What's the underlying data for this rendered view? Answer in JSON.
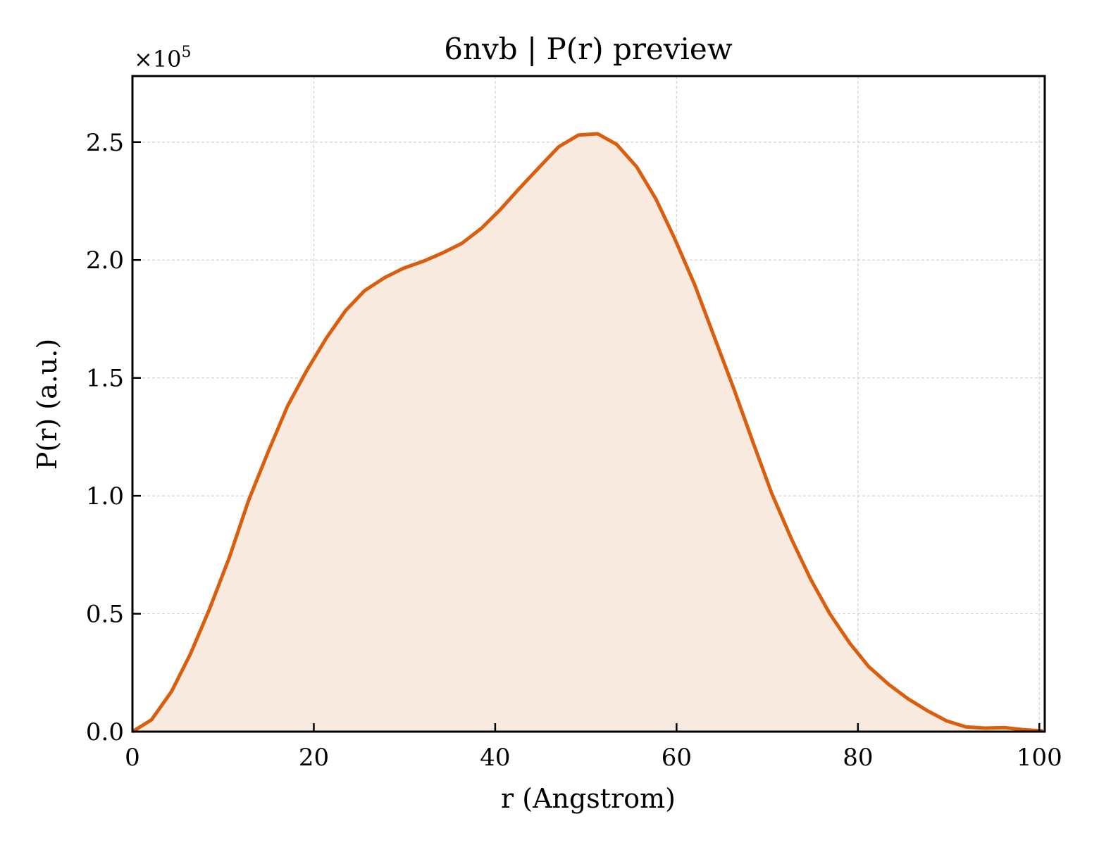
{
  "chart_data": {
    "type": "area",
    "title": "6nvb | P(r) preview",
    "xlabel": "r (Angstrom)",
    "ylabel": "P(r) (a.u.)",
    "y_multiplier_label": "×10",
    "y_multiplier_exponent": "5",
    "xlim": [
      0,
      100.6
    ],
    "ylim": [
      0,
      2.78
    ],
    "y_scale_note": "values in units of 1e5",
    "grid": true,
    "x_ticks": [
      0,
      20,
      40,
      60,
      80,
      100
    ],
    "x_tick_labels": [
      "0",
      "20",
      "40",
      "60",
      "80",
      "100"
    ],
    "y_ticks": [
      0,
      0.5,
      1.0,
      1.5,
      2.0,
      2.5
    ],
    "y_tick_labels": [
      "0.0",
      "0.5",
      "1.0",
      "1.5",
      "2.0",
      "2.5"
    ],
    "colors": {
      "line": "#d95f0e",
      "fill": "#f9eadf",
      "grid": "#d3d3d3"
    },
    "series": [
      {
        "x": [
          0,
          2.1,
          4.3,
          6.4,
          8.5,
          10.7,
          12.8,
          15.0,
          17.1,
          19.2,
          21.4,
          23.5,
          25.6,
          27.8,
          29.9,
          32.1,
          34.2,
          36.3,
          38.5,
          40.6,
          42.7,
          44.9,
          47.0,
          49.2,
          51.3,
          53.4,
          55.6,
          57.7,
          59.8,
          62.0,
          64.1,
          66.3,
          68.4,
          70.5,
          72.7,
          74.8,
          76.9,
          79.1,
          81.2,
          83.4,
          85.5,
          87.6,
          89.8,
          91.9,
          94.0,
          96.2,
          98.3,
          100.4
        ],
        "y": [
          0.0,
          0.05,
          0.17,
          0.33,
          0.52,
          0.74,
          0.98,
          1.19,
          1.38,
          1.53,
          1.67,
          1.785,
          1.87,
          1.925,
          1.965,
          1.995,
          2.03,
          2.07,
          2.135,
          2.215,
          2.305,
          2.395,
          2.48,
          2.53,
          2.535,
          2.49,
          2.395,
          2.26,
          2.09,
          1.895,
          1.68,
          1.455,
          1.23,
          1.01,
          0.815,
          0.645,
          0.5,
          0.375,
          0.275,
          0.2,
          0.14,
          0.09,
          0.045,
          0.02,
          0.015,
          0.017,
          0.008,
          0.003
        ]
      }
    ]
  }
}
